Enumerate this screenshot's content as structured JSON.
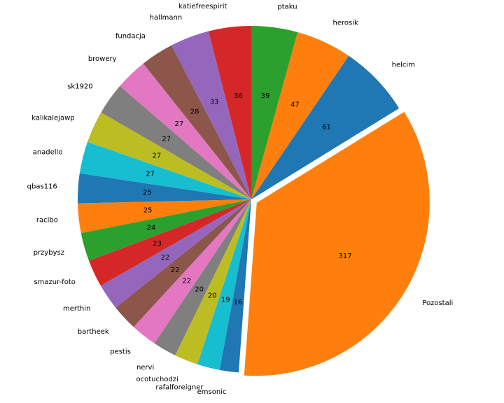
{
  "chart_data": {
    "type": "pie",
    "title": "",
    "start_angle_deg": 90,
    "direction": "counterclockwise",
    "exploded": [
      "Pozostali"
    ],
    "slices": [
      {
        "label": "katiefreespirit",
        "value": 36,
        "color": "#d62728"
      },
      {
        "label": "hallmann",
        "value": 33,
        "color": "#9467bd"
      },
      {
        "label": "fundacja",
        "value": 28,
        "color": "#8c564b"
      },
      {
        "label": "browery",
        "value": 27,
        "color": "#e377c2"
      },
      {
        "label": "sk1920",
        "value": 27,
        "color": "#7f7f7f"
      },
      {
        "label": "kalikalejawp",
        "value": 27,
        "color": "#bcbd22"
      },
      {
        "label": "anadello",
        "value": 27,
        "color": "#17becf"
      },
      {
        "label": "qbas116",
        "value": 25,
        "color": "#1f77b4"
      },
      {
        "label": "racibo",
        "value": 25,
        "color": "#ff7f0e"
      },
      {
        "label": "przybysz",
        "value": 24,
        "color": "#2ca02c"
      },
      {
        "label": "smazur-foto",
        "value": 23,
        "color": "#d62728"
      },
      {
        "label": "merthin",
        "value": 22,
        "color": "#9467bd"
      },
      {
        "label": "bartheek",
        "value": 22,
        "color": "#8c564b"
      },
      {
        "label": "pestis",
        "value": 22,
        "color": "#e377c2"
      },
      {
        "label": "nervi",
        "value": 20,
        "color": "#7f7f7f"
      },
      {
        "label": "ocotuchodzi",
        "value": 20,
        "color": "#bcbd22"
      },
      {
        "label": "rafalforeigner",
        "value": 19,
        "color": "#17becf"
      },
      {
        "label": "emsonic",
        "value": 16,
        "color": "#1f77b4"
      },
      {
        "label": "Pozostali",
        "value": 317,
        "color": "#ff7f0e"
      },
      {
        "label": "helcim",
        "value": 61,
        "color": "#1f77b4"
      },
      {
        "label": "herosik",
        "value": 47,
        "color": "#ff7f0e"
      },
      {
        "label": "ptaku",
        "value": 39,
        "color": "#2ca02c"
      }
    ]
  }
}
